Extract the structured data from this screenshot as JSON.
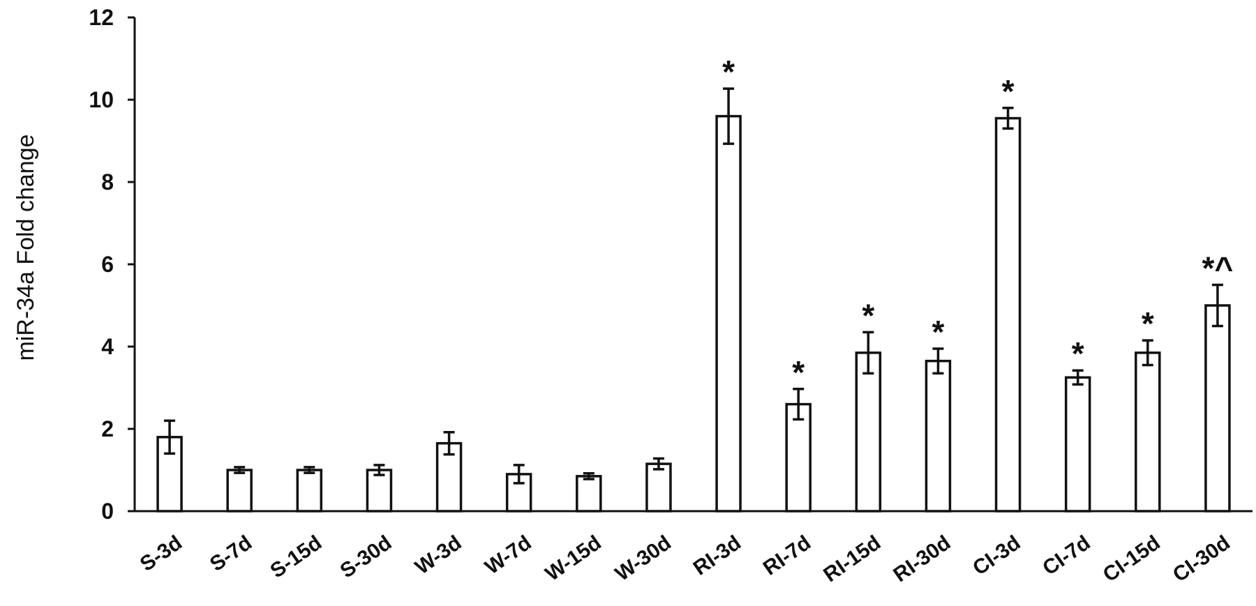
{
  "chart_data": {
    "type": "bar",
    "title": "",
    "xlabel": "",
    "ylabel": "miR-34a Fold change",
    "ylim": [
      0,
      12
    ],
    "yticks": [
      "0",
      "2",
      "4",
      "6",
      "8",
      "10",
      "12"
    ],
    "grid": false,
    "legend": "none",
    "categories": [
      "S-3d",
      "S-7d",
      "S-15d",
      "S-30d",
      "W-3d",
      "W-7d",
      "W-15d",
      "W-30d",
      "RI-3d",
      "RI-7d",
      "RI-15d",
      "RI-30d",
      "CI-3d",
      "CI-7d",
      "CI-15d",
      "CI-30d"
    ],
    "values": [
      1.8,
      1.0,
      1.0,
      1.0,
      1.65,
      0.9,
      0.85,
      1.15,
      9.6,
      2.6,
      3.85,
      3.65,
      9.55,
      3.25,
      3.85,
      5.0
    ],
    "errors": [
      0.4,
      0.07,
      0.07,
      0.12,
      0.27,
      0.22,
      0.07,
      0.13,
      0.67,
      0.37,
      0.5,
      0.3,
      0.25,
      0.17,
      0.3,
      0.5
    ],
    "annotations": [
      "",
      "",
      "",
      "",
      "",
      "",
      "",
      "",
      "*",
      "*",
      "*",
      "*",
      "*",
      "*",
      "*",
      "*^"
    ]
  }
}
